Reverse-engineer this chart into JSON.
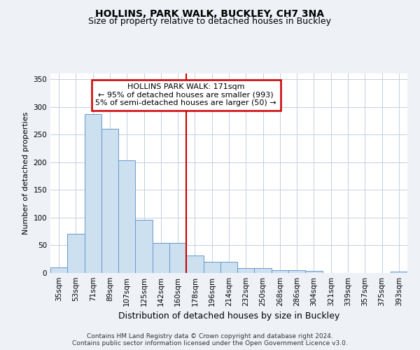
{
  "title": "HOLLINS, PARK WALK, BUCKLEY, CH7 3NA",
  "subtitle": "Size of property relative to detached houses in Buckley",
  "xlabel": "Distribution of detached houses by size in Buckley",
  "ylabel": "Number of detached properties",
  "bar_labels": [
    "35sqm",
    "53sqm",
    "71sqm",
    "89sqm",
    "107sqm",
    "125sqm",
    "142sqm",
    "160sqm",
    "178sqm",
    "196sqm",
    "214sqm",
    "232sqm",
    "250sqm",
    "268sqm",
    "286sqm",
    "304sqm",
    "321sqm",
    "339sqm",
    "357sqm",
    "375sqm",
    "393sqm"
  ],
  "bar_heights": [
    10,
    71,
    287,
    260,
    204,
    96,
    54,
    54,
    31,
    20,
    20,
    9,
    9,
    5,
    5,
    4,
    0,
    0,
    0,
    0,
    2
  ],
  "bar_color": "#cce0f0",
  "bar_edge_color": "#6699cc",
  "vline_x": 8,
  "vline_color": "#cc0000",
  "annotation_text": "HOLLINS PARK WALK: 171sqm\n← 95% of detached houses are smaller (993)\n5% of semi-detached houses are larger (50) →",
  "annotation_box_color": "#cc0000",
  "ylim": [
    0,
    360
  ],
  "yticks": [
    0,
    50,
    100,
    150,
    200,
    250,
    300,
    350
  ],
  "footer_text": "Contains HM Land Registry data © Crown copyright and database right 2024.\nContains public sector information licensed under the Open Government Licence v3.0.",
  "bg_color": "#eef2f7",
  "plot_bg_color": "#ffffff",
  "title_fontsize": 10,
  "subtitle_fontsize": 9,
  "xlabel_fontsize": 9,
  "ylabel_fontsize": 8,
  "tick_fontsize": 7.5,
  "footer_fontsize": 6.5,
  "annotation_fontsize": 8
}
